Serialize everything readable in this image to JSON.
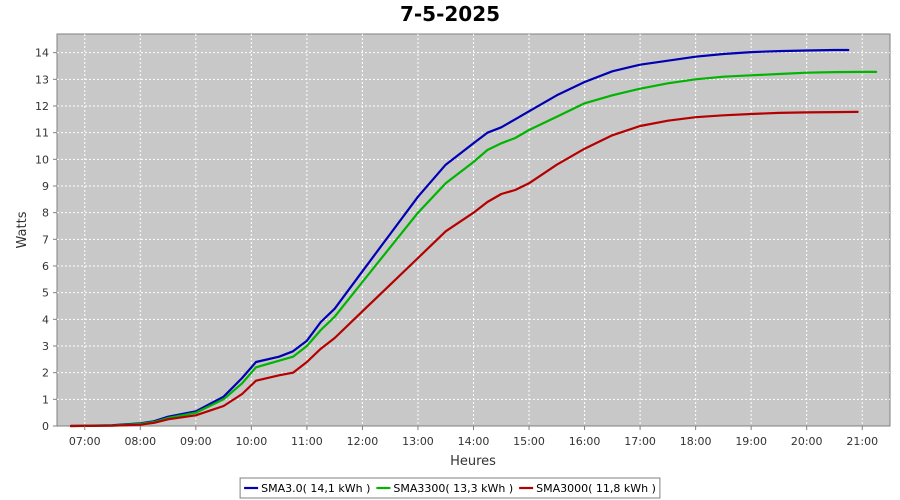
{
  "chart_data": {
    "type": "line",
    "title": "7-5-2025",
    "xlabel": "Heures",
    "ylabel": "Watts",
    "grid": true,
    "legend_position": "bottom",
    "xlim": [
      "06:30",
      "21:30"
    ],
    "ylim": [
      0,
      14.7
    ],
    "x_ticks": [
      "07:00",
      "08:00",
      "09:00",
      "10:00",
      "11:00",
      "12:00",
      "13:00",
      "14:00",
      "15:00",
      "16:00",
      "17:00",
      "18:00",
      "19:00",
      "20:00",
      "21:00"
    ],
    "y_ticks": [
      0,
      1,
      2,
      3,
      4,
      5,
      6,
      7,
      8,
      9,
      10,
      11,
      12,
      13,
      14
    ],
    "series": [
      {
        "name": "SMA3.0( 14,1 kWh )",
        "color": "#0000b4",
        "x": [
          "06:45",
          "07:30",
          "08:00",
          "08:15",
          "08:30",
          "09:00",
          "09:30",
          "09:50",
          "10:05",
          "10:30",
          "10:45",
          "11:00",
          "11:15",
          "11:30",
          "12:00",
          "12:30",
          "13:00",
          "13:30",
          "14:00",
          "14:15",
          "14:30",
          "14:45",
          "15:00",
          "15:30",
          "16:00",
          "16:30",
          "17:00",
          "17:30",
          "18:00",
          "18:30",
          "19:00",
          "19:30",
          "20:00",
          "20:30",
          "20:45"
        ],
        "values": [
          0,
          0.03,
          0.1,
          0.18,
          0.35,
          0.55,
          1.1,
          1.8,
          2.4,
          2.6,
          2.8,
          3.2,
          3.9,
          4.4,
          5.8,
          7.2,
          8.6,
          9.8,
          10.6,
          11.0,
          11.2,
          11.5,
          11.8,
          12.4,
          12.9,
          13.3,
          13.55,
          13.7,
          13.85,
          13.95,
          14.02,
          14.06,
          14.08,
          14.1,
          14.1
        ]
      },
      {
        "name": "SMA3300( 13,3 kWh )",
        "color": "#00b400",
        "x": [
          "06:45",
          "07:30",
          "08:00",
          "08:15",
          "08:30",
          "09:00",
          "09:30",
          "09:50",
          "10:05",
          "10:30",
          "10:45",
          "11:00",
          "11:15",
          "11:30",
          "12:00",
          "12:30",
          "13:00",
          "13:30",
          "14:00",
          "14:15",
          "14:30",
          "14:45",
          "15:00",
          "15:30",
          "16:00",
          "16:30",
          "17:00",
          "17:30",
          "18:00",
          "18:30",
          "19:00",
          "19:30",
          "20:00",
          "20:30",
          "21:00",
          "21:15"
        ],
        "values": [
          0,
          0.02,
          0.08,
          0.15,
          0.3,
          0.5,
          1.0,
          1.6,
          2.2,
          2.45,
          2.6,
          3.0,
          3.6,
          4.1,
          5.4,
          6.7,
          8.0,
          9.1,
          9.9,
          10.35,
          10.6,
          10.8,
          11.1,
          11.6,
          12.1,
          12.4,
          12.65,
          12.85,
          13.0,
          13.1,
          13.15,
          13.2,
          13.25,
          13.27,
          13.28,
          13.28
        ]
      },
      {
        "name": "SMA3000( 11,8 kWh )",
        "color": "#b40000",
        "x": [
          "06:45",
          "07:30",
          "08:00",
          "08:15",
          "08:30",
          "09:00",
          "09:30",
          "09:50",
          "10:05",
          "10:30",
          "10:45",
          "11:00",
          "11:15",
          "11:30",
          "12:00",
          "12:30",
          "13:00",
          "13:30",
          "14:00",
          "14:15",
          "14:30",
          "14:45",
          "15:00",
          "15:30",
          "16:00",
          "16:30",
          "17:00",
          "17:30",
          "18:00",
          "18:30",
          "19:00",
          "19:30",
          "20:00",
          "20:30",
          "20:55"
        ],
        "values": [
          0,
          0.01,
          0.05,
          0.12,
          0.25,
          0.4,
          0.75,
          1.2,
          1.7,
          1.9,
          2.0,
          2.4,
          2.9,
          3.3,
          4.3,
          5.3,
          6.3,
          7.3,
          8.0,
          8.4,
          8.7,
          8.85,
          9.1,
          9.8,
          10.4,
          10.9,
          11.25,
          11.45,
          11.58,
          11.65,
          11.7,
          11.74,
          11.76,
          11.77,
          11.78
        ]
      }
    ]
  }
}
